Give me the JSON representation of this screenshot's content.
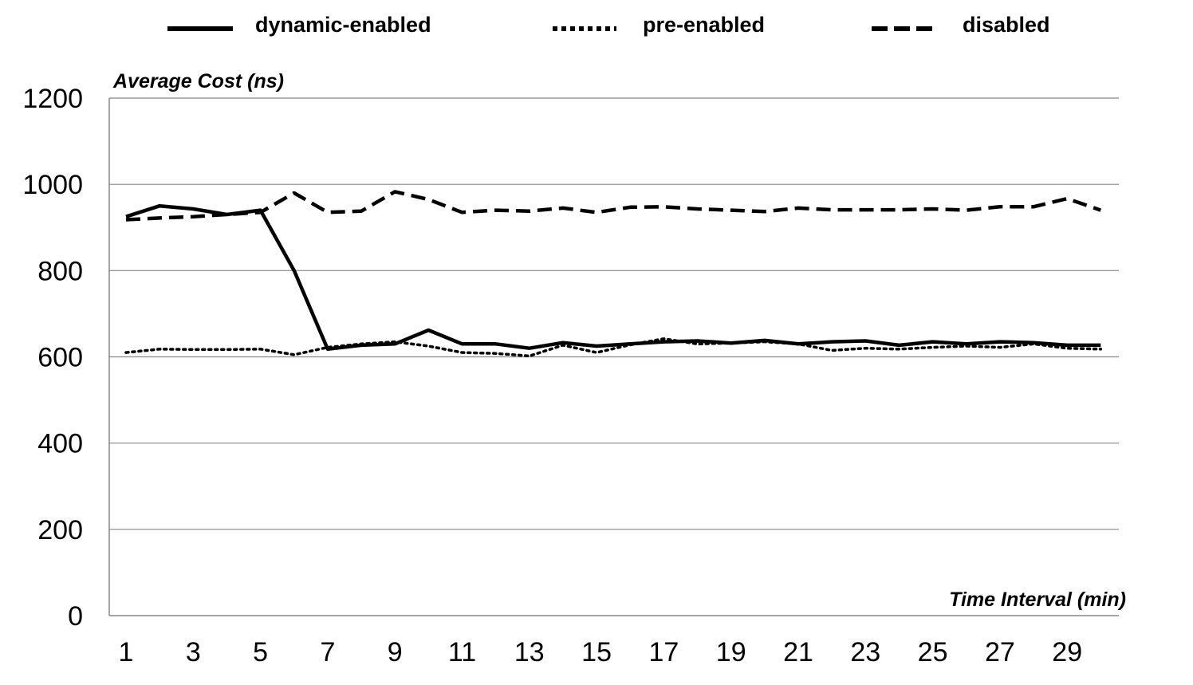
{
  "chart_data": {
    "type": "line",
    "xlabel": "Time Interval (min)",
    "ylabel": "Average Cost (ns)",
    "ylim": [
      0,
      1200
    ],
    "yticks": [
      0,
      200,
      400,
      600,
      800,
      1000,
      1200
    ],
    "xticks": [
      1,
      3,
      5,
      7,
      9,
      11,
      13,
      15,
      17,
      19,
      21,
      23,
      25,
      27,
      29
    ],
    "x": [
      1,
      2,
      3,
      4,
      5,
      6,
      7,
      8,
      9,
      10,
      11,
      12,
      13,
      14,
      15,
      16,
      17,
      18,
      19,
      20,
      21,
      22,
      23,
      24,
      25,
      26,
      27,
      28,
      29,
      30
    ],
    "grid": "horizontal",
    "legend_position": "top",
    "series": [
      {
        "name": "dynamic-enabled",
        "style": "solid",
        "color": "#000000",
        "values": [
          925,
          950,
          943,
          930,
          940,
          800,
          618,
          627,
          630,
          662,
          630,
          630,
          620,
          633,
          625,
          630,
          635,
          637,
          632,
          638,
          630,
          635,
          637,
          627,
          635,
          630,
          635,
          633,
          627,
          627
        ]
      },
      {
        "name": "pre-enabled",
        "style": "dotted",
        "color": "#000000",
        "values": [
          610,
          618,
          617,
          617,
          618,
          605,
          622,
          630,
          635,
          625,
          610,
          608,
          602,
          627,
          610,
          628,
          642,
          630,
          632,
          635,
          630,
          615,
          620,
          618,
          622,
          625,
          622,
          630,
          620,
          618
        ]
      },
      {
        "name": "disabled",
        "style": "dashed",
        "color": "#000000",
        "values": [
          918,
          922,
          925,
          930,
          935,
          980,
          935,
          938,
          983,
          965,
          935,
          940,
          938,
          945,
          935,
          947,
          948,
          943,
          940,
          937,
          945,
          941,
          941,
          941,
          943,
          940,
          948,
          948,
          967,
          940
        ]
      }
    ]
  }
}
